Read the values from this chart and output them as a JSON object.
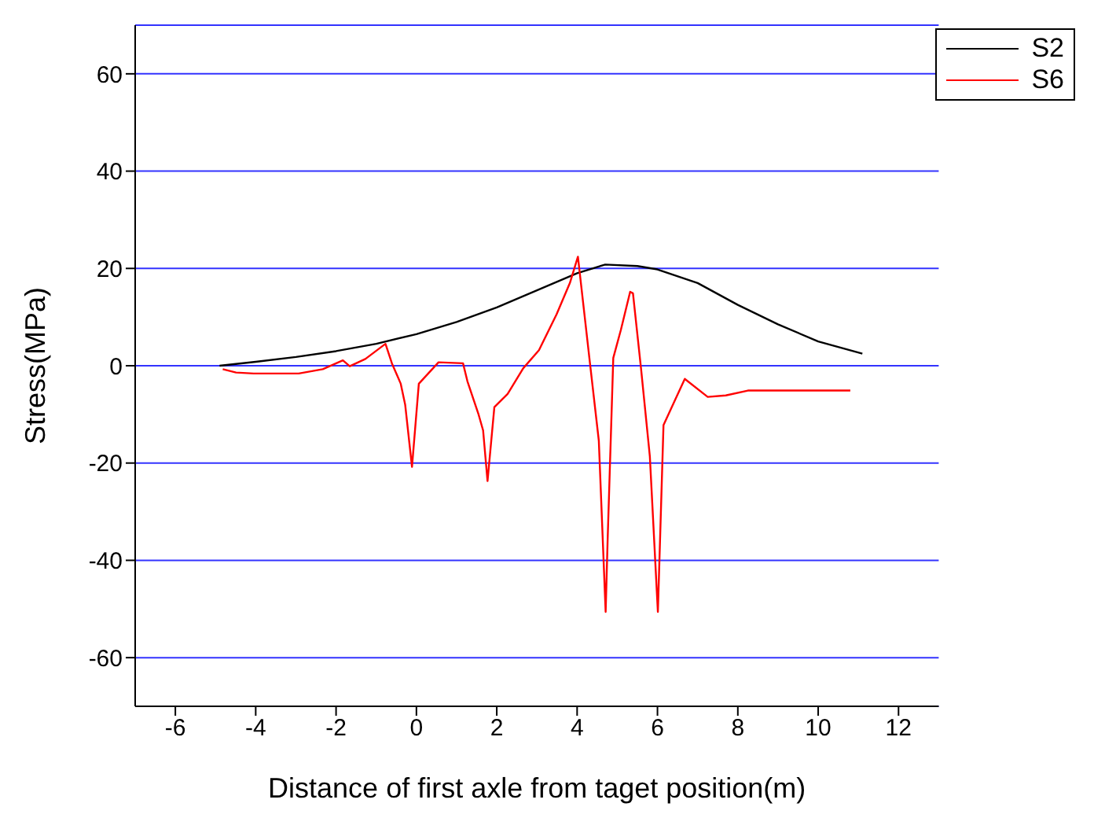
{
  "chart_data": {
    "type": "line",
    "xlabel": "Distance of first axle from taget position(m)",
    "ylabel": "Stress(MPa)",
    "xlim": [
      -7,
      13
    ],
    "xticks": [
      -6,
      -4,
      -2,
      0,
      2,
      4,
      6,
      8,
      10,
      12
    ],
    "ylim": [
      -70,
      70
    ],
    "yticks": [
      -60,
      -40,
      -20,
      0,
      20,
      40,
      60
    ],
    "grid": "y",
    "legend": "top right",
    "marker": "none",
    "line_style": "solid",
    "series": [
      {
        "name": "S2",
        "color": "#000000",
        "x": [
          -4.9,
          -4,
          -3,
          -2,
          -1,
          0,
          1,
          2,
          3,
          4,
          4.7,
          5.5,
          6,
          7,
          8,
          9,
          10,
          11.1
        ],
        "values": [
          0,
          0.8,
          1.8,
          3,
          4.5,
          6.5,
          9,
          12,
          15.5,
          19,
          20.8,
          20.5,
          19.8,
          17,
          12.5,
          8.5,
          5,
          2.5
        ]
      },
      {
        "name": "S6",
        "color": "#ff0000",
        "x": [
          -4.82,
          -4.49,
          -4.05,
          -2.93,
          -2.33,
          -1.83,
          -1.66,
          -1.27,
          -0.77,
          -0.61,
          -0.39,
          -0.28,
          -0.11,
          0.06,
          0.55,
          1.16,
          1.27,
          1.55,
          1.66,
          1.77,
          1.94,
          2.27,
          2.66,
          3.05,
          3.49,
          3.82,
          4.02,
          4.32,
          4.54,
          4.71,
          4.76,
          4.9,
          5.09,
          5.32,
          5.39,
          5.59,
          5.81,
          6.01,
          6.15,
          6.68,
          7.25,
          7.7,
          8.25,
          10.8
        ],
        "values": [
          -0.7,
          -1.4,
          -1.6,
          -1.6,
          -0.7,
          1.1,
          -0.1,
          1.4,
          4.5,
          0.5,
          -3.7,
          -8,
          -20.8,
          -3.7,
          0.7,
          0.5,
          -3.2,
          -10.1,
          -13.3,
          -23.7,
          -8.5,
          -5.8,
          -0.5,
          3.2,
          10.6,
          17,
          22.4,
          0.5,
          -15.4,
          -50.6,
          -35.7,
          1.6,
          7.4,
          15.2,
          14.9,
          -0.5,
          -18.6,
          -50.6,
          -12.2,
          -2.7,
          -6.4,
          -6.1,
          -5.1,
          -5.1
        ]
      }
    ]
  }
}
